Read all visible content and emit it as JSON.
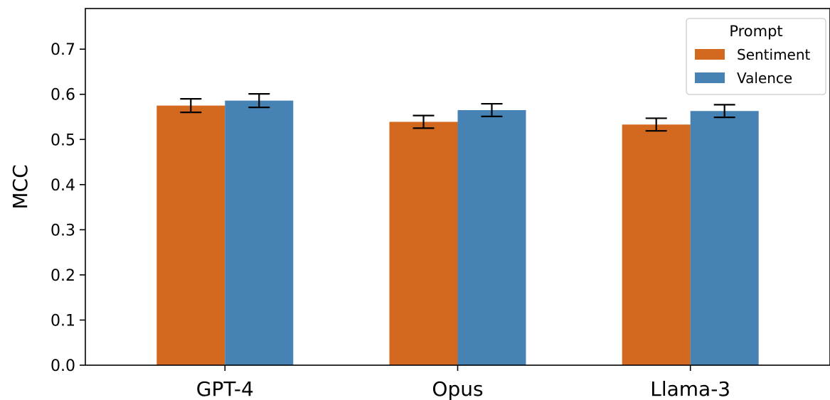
{
  "chart_data": {
    "type": "bar",
    "title": "",
    "xlabel": "",
    "ylabel": "MCC",
    "ylim": [
      0,
      0.79
    ],
    "yticks": [
      "0.0",
      "0.1",
      "0.2",
      "0.3",
      "0.4",
      "0.5",
      "0.6",
      "0.7"
    ],
    "categories": [
      "GPT-4",
      "Opus",
      "Llama-3"
    ],
    "series": [
      {
        "name": "Sentiment",
        "color": "#d2691e",
        "values": [
          0.575,
          0.539,
          0.533
        ],
        "errors": [
          0.015,
          0.014,
          0.014
        ]
      },
      {
        "name": "Valence",
        "color": "#4682b4",
        "values": [
          0.586,
          0.565,
          0.563
        ],
        "errors": [
          0.015,
          0.014,
          0.014
        ]
      }
    ],
    "legend": {
      "title": "Prompt",
      "placement": "top-right"
    },
    "grid": false
  }
}
